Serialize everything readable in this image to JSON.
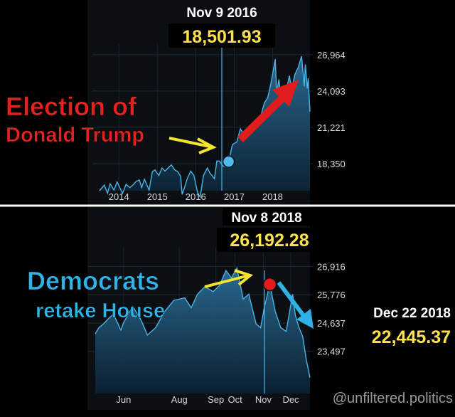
{
  "chart_data": [
    {
      "type": "area",
      "title": "Nov 9 2016",
      "highlight_value": "18,501.93",
      "x_ticks": [
        "2014",
        "2015",
        "2016",
        "2017",
        "2018"
      ],
      "y_ticks": [
        "26,964",
        "24,093",
        "21,221",
        "18,350"
      ],
      "ylim": [
        16200,
        27800
      ],
      "annotation": [
        "Election of",
        "Donald Trump"
      ],
      "marker": {
        "date": "2016-11-09",
        "value": 18501.93,
        "color": "#4fb8ee"
      },
      "series": [
        {
          "points": [
            [
              "2013-07-01",
              16200
            ],
            [
              "2013-08-15",
              16650
            ],
            [
              "2013-09-15",
              16000
            ],
            [
              "2013-10-10",
              16750
            ],
            [
              "2013-11-15",
              16250
            ],
            [
              "2013-12-15",
              16900
            ],
            [
              "2014-01-15",
              16350
            ],
            [
              "2014-02-05",
              16000
            ],
            [
              "2014-03-10",
              16700
            ],
            [
              "2014-04-15",
              16450
            ],
            [
              "2014-05-15",
              16650
            ],
            [
              "2014-06-15",
              16950
            ],
            [
              "2014-07-15",
              17050
            ],
            [
              "2014-08-05",
              16450
            ],
            [
              "2014-09-01",
              17100
            ],
            [
              "2014-10-15",
              16250
            ],
            [
              "2014-11-15",
              17700
            ],
            [
              "2014-12-10",
              17850
            ],
            [
              "2015-01-15",
              17400
            ],
            [
              "2015-02-15",
              18000
            ],
            [
              "2015-03-15",
              17750
            ],
            [
              "2015-04-15",
              18000
            ],
            [
              "2015-05-15",
              18250
            ],
            [
              "2015-06-15",
              17850
            ],
            [
              "2015-07-15",
              17700
            ],
            [
              "2015-08-10",
              17350
            ],
            [
              "2015-08-25",
              15900
            ],
            [
              "2015-09-15",
              16400
            ],
            [
              "2015-10-15",
              17200
            ],
            [
              "2015-11-15",
              17750
            ],
            [
              "2015-12-15",
              17400
            ],
            [
              "2016-01-20",
              16000
            ],
            [
              "2016-02-12",
              15700
            ],
            [
              "2016-03-15",
              17400
            ],
            [
              "2016-04-20",
              18000
            ],
            [
              "2016-05-15",
              17600
            ],
            [
              "2016-06-27",
              17150
            ],
            [
              "2016-07-20",
              18550
            ],
            [
              "2016-08-15",
              18550
            ],
            [
              "2016-09-15",
              18150
            ],
            [
              "2016-10-15",
              18150
            ],
            [
              "2016-11-09",
              18501.93
            ],
            [
              "2016-12-15",
              19850
            ],
            [
              "2017-01-25",
              20050
            ],
            [
              "2017-03-01",
              21100
            ],
            [
              "2017-04-15",
              20450
            ],
            [
              "2017-05-15",
              20950
            ],
            [
              "2017-06-15",
              21400
            ],
            [
              "2017-07-15",
              21650
            ],
            [
              "2017-08-15",
              21750
            ],
            [
              "2017-09-15",
              22250
            ],
            [
              "2017-10-15",
              23150
            ],
            [
              "2017-11-15",
              23550
            ],
            [
              "2017-12-15",
              24650
            ],
            [
              "2018-01-26",
              26600
            ],
            [
              "2018-02-08",
              23850
            ],
            [
              "2018-03-01",
              25000
            ],
            [
              "2018-03-25",
              23550
            ],
            [
              "2018-04-15",
              24350
            ],
            [
              "2018-05-05",
              23900
            ],
            [
              "2018-06-10",
              25300
            ],
            [
              "2018-07-01",
              24200
            ],
            [
              "2018-08-01",
              25400
            ],
            [
              "2018-09-01",
              25950
            ],
            [
              "2018-10-03",
              26850
            ],
            [
              "2018-10-29",
              24450
            ],
            [
              "2018-11-08",
              26192.28
            ],
            [
              "2018-11-26",
              24300
            ],
            [
              "2018-12-05",
              25100
            ],
            [
              "2018-12-22",
              22445.37
            ]
          ]
        }
      ]
    },
    {
      "type": "area",
      "title": "Nov 8 2018",
      "highlight_value": "26,192.28",
      "x_ticks": [
        "Jun",
        "Aug",
        "Sep",
        "Oct",
        "Nov",
        "Dec"
      ],
      "y_ticks": [
        "26,916",
        "25,776",
        "24,637",
        "23,497"
      ],
      "ylim": [
        21800,
        27700
      ],
      "annotation": [
        "Democrats",
        "retake House"
      ],
      "marker": {
        "date": "2018-11-08",
        "value": 26192.28,
        "color": "#e01c1c"
      },
      "end_label": {
        "date": "Dec 22 2018",
        "value": "22,445.37"
      },
      "series": [
        {
          "points": [
            [
              "2018-05-01",
              24200
            ],
            [
              "2018-05-05",
              24450
            ],
            [
              "2018-05-10",
              24600
            ],
            [
              "2018-05-15",
              24800
            ],
            [
              "2018-05-21",
              25000
            ],
            [
              "2018-05-29",
              24350
            ],
            [
              "2018-06-01",
              24650
            ],
            [
              "2018-06-11",
              25300
            ],
            [
              "2018-06-18",
              24900
            ],
            [
              "2018-06-22",
              24600
            ],
            [
              "2018-06-27",
              24150
            ],
            [
              "2018-07-06",
              24450
            ],
            [
              "2018-07-16",
              25100
            ],
            [
              "2018-07-26",
              25550
            ],
            [
              "2018-08-07",
              25650
            ],
            [
              "2018-08-14",
              25250
            ],
            [
              "2018-08-21",
              25800
            ],
            [
              "2018-08-29",
              26100
            ],
            [
              "2018-09-07",
              25900
            ],
            [
              "2018-09-14",
              26150
            ],
            [
              "2018-09-21",
              26750
            ],
            [
              "2018-09-27",
              26450
            ],
            [
              "2018-10-03",
              26850
            ],
            [
              "2018-10-10",
              25600
            ],
            [
              "2018-10-16",
              25800
            ],
            [
              "2018-10-24",
              24600
            ],
            [
              "2018-10-29",
              24450
            ],
            [
              "2018-11-02",
              25250
            ],
            [
              "2018-11-08",
              26192.28
            ],
            [
              "2018-11-14",
              25100
            ],
            [
              "2018-11-20",
              24450
            ],
            [
              "2018-11-26",
              24300
            ],
            [
              "2018-12-03",
              25800
            ],
            [
              "2018-12-06",
              24950
            ],
            [
              "2018-12-10",
              24450
            ],
            [
              "2018-12-14",
              24100
            ],
            [
              "2018-12-18",
              23150
            ],
            [
              "2018-12-22",
              22445.37
            ]
          ]
        }
      ]
    }
  ],
  "watermark": "@unfiltered.politics",
  "colors": {
    "panel": "#0b0f14",
    "line": "#4bb4e6",
    "arrow_red": "#e01c1c",
    "arrow_yellow": "#f4e52a",
    "arrow_blue": "#2fb3e6",
    "value_yellow": "#ffe14d"
  }
}
